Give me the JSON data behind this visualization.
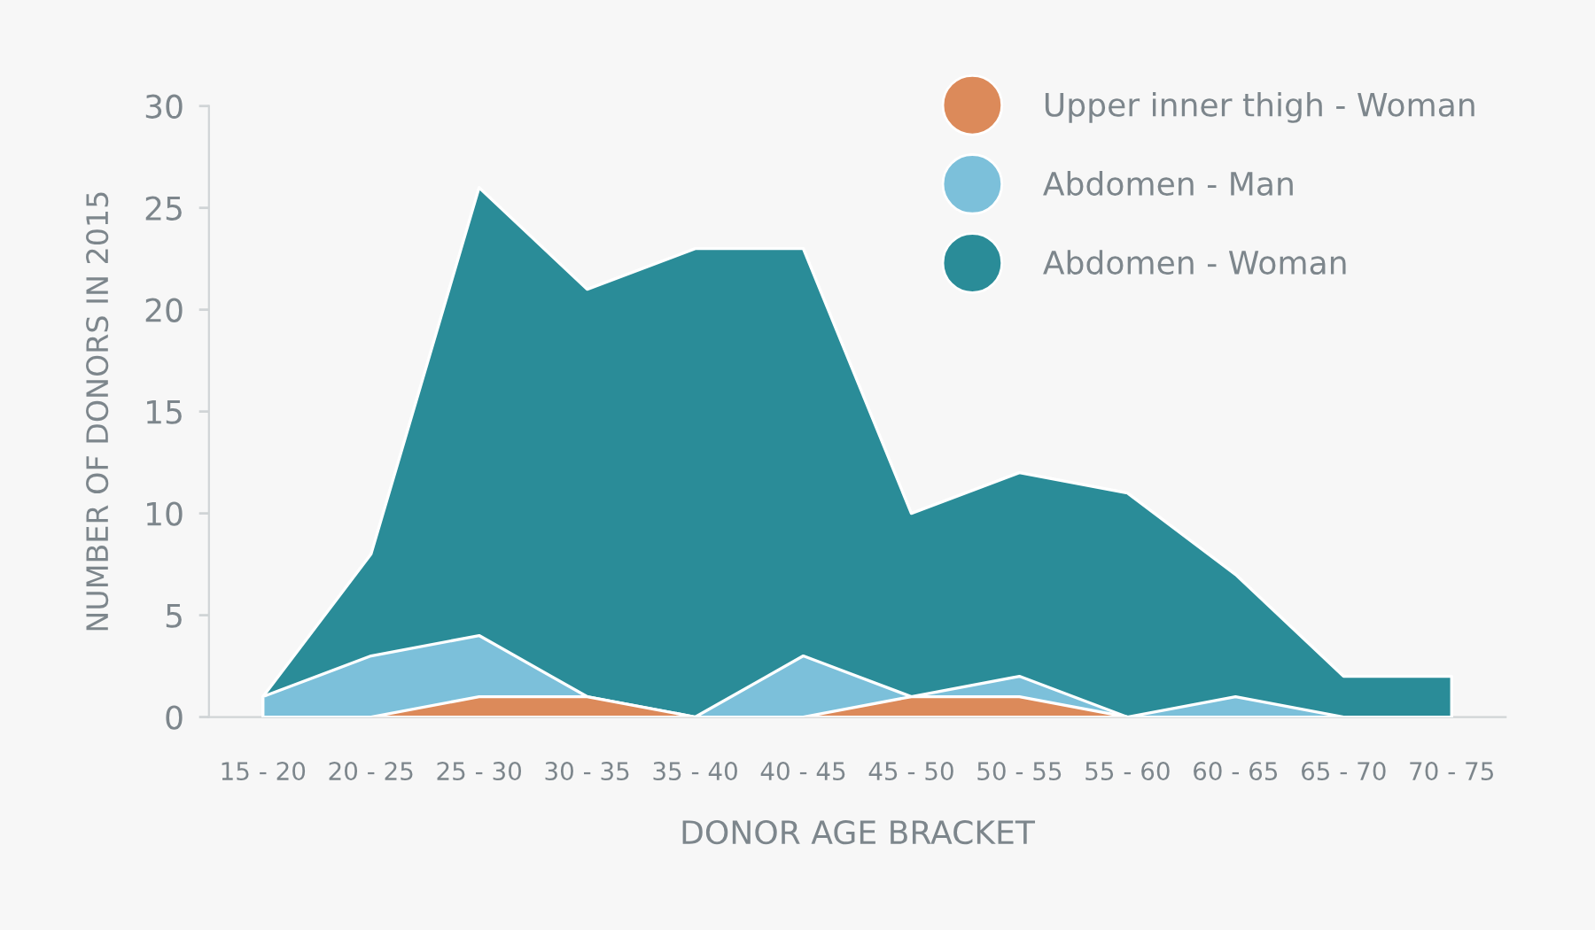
{
  "chart_data": {
    "type": "area",
    "xlabel": "DONOR AGE BRACKET",
    "ylabel": "NUMBER OF DONORS IN 2015",
    "categories": [
      "15 - 20",
      "20 - 25",
      "25 - 30",
      "30 - 35",
      "35 - 40",
      "40 - 45",
      "45 - 50",
      "50 - 55",
      "55 - 60",
      "60 - 65",
      "65 - 70",
      "70 - 75"
    ],
    "series": [
      {
        "name": "Upper inner thigh - Woman",
        "color": "#dc8a5a",
        "values": [
          0,
          0,
          1,
          1,
          0,
          0,
          1,
          1,
          0,
          0,
          0,
          0
        ]
      },
      {
        "name": "Abdomen - Man",
        "color": "#7cc0da",
        "values": [
          1,
          3,
          4,
          1,
          0,
          3,
          1,
          2,
          0,
          1,
          0,
          0
        ]
      },
      {
        "name": "Abdomen - Woman",
        "color": "#2a8c98",
        "values": [
          1,
          8,
          26,
          21,
          23,
          23,
          10,
          12,
          11,
          7,
          2,
          2
        ]
      }
    ],
    "ylim": [
      0,
      30
    ],
    "yticks": [
      0,
      5,
      10,
      15,
      20,
      25,
      30
    ],
    "grid": false,
    "legend": "top right"
  }
}
